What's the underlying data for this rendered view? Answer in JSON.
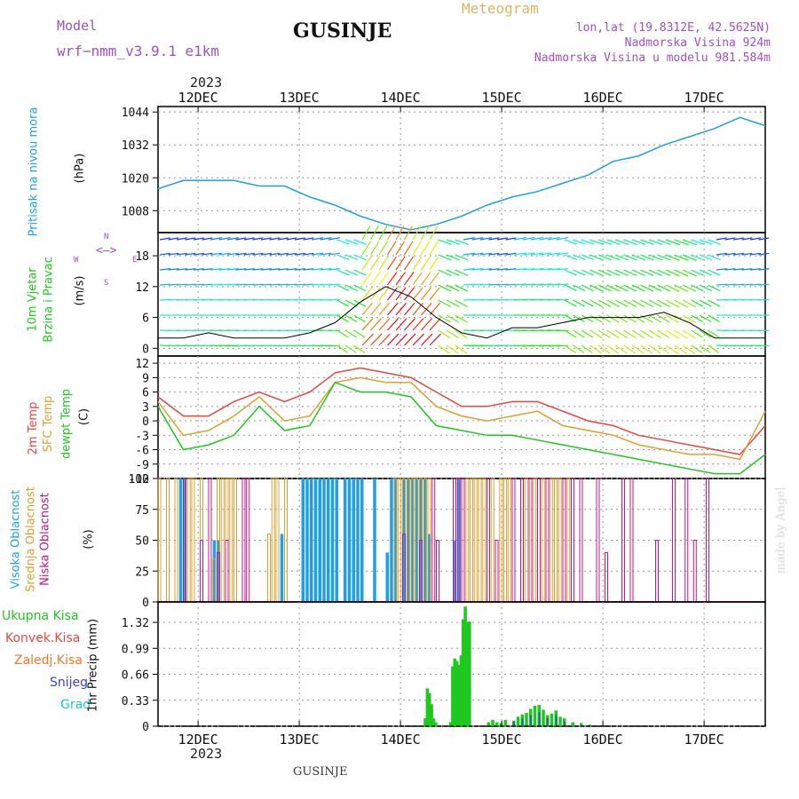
{
  "header": {
    "model_label": "Model",
    "model_name": "wrf−nmm_v3.9.1  e1km",
    "location": "GUSINJE",
    "product": "Meteogram",
    "lonlat": "lon,lat (19.8312E, 42.5625N)",
    "elevation": "Nadmorska Visina 924m",
    "model_elevation": "Nadmorska Visina u modelu 981.584m",
    "year_top": "2023",
    "year_bottom": "2023",
    "footer": "GUSINJE",
    "credit": "made by Angel"
  },
  "colors": {
    "pressure": "#1ea0e6",
    "temp2m": "#e8463c",
    "sfc": "#dca032",
    "dew": "#1ec81e",
    "high_cloud": "#1ea0e6",
    "mid_cloud": "#dca032",
    "low_cloud": "#c8148c",
    "precip": "#1ec81e",
    "snow": "#3c3cdc"
  },
  "chart_data": [
    {
      "type": "line",
      "panel": "pressure",
      "ylabel_main": "Pritisak na nivou mora",
      "ylabel_unit": "(hPa)",
      "x_ticks": [
        "12DEC",
        "13DEC",
        "14DEC",
        "15DEC",
        "16DEC",
        "17DEC"
      ],
      "y_ticks": [
        1008,
        1020,
        1032,
        1044
      ],
      "ylim": [
        1000,
        1046
      ],
      "x_hours": [
        0,
        6,
        12,
        18,
        24,
        30,
        36,
        42,
        48,
        54,
        60,
        66,
        72,
        78,
        84,
        90,
        96,
        102,
        108,
        114,
        120,
        126,
        132,
        138,
        144
      ],
      "series": [
        {
          "values": [
            1016,
            1019,
            1019,
            1019,
            1017,
            1017,
            1013,
            1010,
            1006,
            1003,
            1001,
            1003,
            1006,
            1010,
            1013,
            1015,
            1018,
            1021,
            1026,
            1028,
            1032,
            1035,
            1038,
            1042,
            1039
          ]
        }
      ]
    },
    {
      "type": "line",
      "panel": "wind",
      "ylabel_main": "10m Vjetar",
      "ylabel_sub": "Brzina i Pravac",
      "ylabel_unit": "(m/s)",
      "compass": [
        "N",
        "S",
        "W",
        "E"
      ],
      "y_ticks": [
        0,
        6,
        12,
        18
      ],
      "ylim": [
        -1.5,
        22.5
      ],
      "series": [
        {
          "values": [
            2,
            2,
            3,
            2,
            2,
            2,
            3,
            5,
            9,
            12,
            10,
            6,
            3,
            2,
            4,
            4,
            5,
            6,
            6,
            6,
            7,
            5,
            2,
            2,
            2
          ]
        }
      ]
    },
    {
      "type": "line",
      "panel": "temperature",
      "ylabel_main": "2m Temp",
      "ylabel_sfc": "SFC Temp",
      "ylabel_dew": "dewpt Temp",
      "ylabel_unit": "(C)",
      "y_ticks": [
        -12,
        -9,
        -6,
        -3,
        0,
        3,
        6,
        9,
        12
      ],
      "ylim": [
        -12,
        13.5
      ],
      "series": [
        {
          "values": [
            5,
            1,
            1,
            4,
            6,
            4,
            6,
            10,
            11,
            10,
            9,
            6,
            3,
            3,
            4,
            4,
            2,
            0,
            -1,
            -3,
            -4,
            -5,
            -6,
            -7,
            -1
          ]
        },
        {
          "values": [
            4,
            -3,
            -2,
            1,
            5,
            0,
            1,
            8,
            9,
            8,
            8,
            3,
            1,
            0,
            1,
            2,
            -1,
            -2,
            -3,
            -5,
            -6,
            -7,
            -7,
            -8,
            2
          ]
        },
        {
          "values": [
            3,
            -6,
            -5,
            -3,
            3,
            -2,
            -1,
            8,
            6,
            6,
            5,
            -1,
            -2,
            -3,
            -3,
            -4,
            -5,
            -6,
            -7,
            -8,
            -9,
            -10,
            -11,
            -11,
            -7
          ]
        }
      ]
    },
    {
      "type": "bar",
      "panel": "cloud",
      "ylabel_high": "Visoka Oblacnost",
      "ylabel_mid": "Srednja Oblacnost",
      "ylabel_low": "Niska Oblacnost",
      "ylabel_unit": "(%)",
      "y_ticks": [
        0,
        25,
        50,
        75,
        100
      ],
      "ylim": [
        0,
        100
      ],
      "series": [
        {
          "points": [
            [
              5,
              100
            ],
            [
              6,
              100
            ],
            [
              13,
              50
            ],
            [
              14,
              50
            ],
            [
              29,
              55
            ],
            [
              34,
              100
            ],
            [
              35,
              100
            ],
            [
              36,
              100
            ],
            [
              37,
              100
            ],
            [
              38,
              100
            ],
            [
              39,
              100
            ],
            [
              40,
              100
            ],
            [
              41,
              100
            ],
            [
              42,
              100
            ],
            [
              44,
              100
            ],
            [
              45,
              100
            ],
            [
              46,
              100
            ],
            [
              47,
              100
            ],
            [
              48,
              100
            ],
            [
              51,
              100
            ],
            [
              54,
              40
            ],
            [
              55,
              100
            ],
            [
              56,
              100
            ],
            [
              58,
              100
            ],
            [
              59,
              100
            ],
            [
              60,
              100
            ],
            [
              61,
              100
            ],
            [
              62,
              100
            ],
            [
              63,
              100
            ],
            [
              64,
              55
            ],
            [
              70,
              50
            ],
            [
              71,
              100
            ]
          ]
        },
        {
          "points": [
            [
              0,
              100
            ],
            [
              2,
              100
            ],
            [
              4,
              100
            ],
            [
              7,
              100
            ],
            [
              8,
              100
            ],
            [
              10,
              100
            ],
            [
              13,
              35
            ],
            [
              14,
              100
            ],
            [
              15,
              100
            ],
            [
              16,
              100
            ],
            [
              17,
              100
            ],
            [
              18,
              100
            ],
            [
              26,
              55
            ],
            [
              27,
              100
            ],
            [
              28,
              100
            ],
            [
              30,
              100
            ],
            [
              56,
              100
            ],
            [
              57,
              100
            ],
            [
              58,
              100
            ],
            [
              59,
              100
            ],
            [
              60,
              100
            ],
            [
              61,
              100
            ],
            [
              62,
              100
            ],
            [
              63,
              100
            ],
            [
              64,
              100
            ],
            [
              72,
              100
            ],
            [
              73,
              100
            ],
            [
              74,
              100
            ],
            [
              75,
              100
            ],
            [
              76,
              100
            ],
            [
              77,
              100
            ],
            [
              79,
              100
            ],
            [
              80,
              50
            ],
            [
              81,
              100
            ],
            [
              82,
              100
            ],
            [
              83,
              100
            ],
            [
              84,
              100
            ],
            [
              86,
              100
            ],
            [
              87,
              100
            ],
            [
              88,
              100
            ],
            [
              89,
              100
            ],
            [
              90,
              100
            ],
            [
              91,
              100
            ],
            [
              92,
              100
            ],
            [
              93,
              100
            ],
            [
              94,
              100
            ],
            [
              95,
              100
            ],
            [
              96,
              100
            ],
            [
              97,
              100
            ]
          ]
        },
        {
          "points": [
            [
              6,
              100
            ],
            [
              10,
              50
            ],
            [
              12,
              100
            ],
            [
              14,
              40
            ],
            [
              16,
              50
            ],
            [
              20,
              100
            ],
            [
              21,
              100
            ],
            [
              58,
              55
            ],
            [
              62,
              50
            ],
            [
              65,
              100
            ],
            [
              66,
              50
            ],
            [
              70,
              100
            ],
            [
              71,
              100
            ],
            [
              72,
              100
            ],
            [
              78,
              100
            ],
            [
              80,
              50
            ],
            [
              84,
              100
            ],
            [
              86,
              100
            ],
            [
              88,
              100
            ],
            [
              90,
              100
            ],
            [
              92,
              100
            ],
            [
              96,
              100
            ],
            [
              98,
              100
            ],
            [
              100,
              100
            ],
            [
              104,
              100
            ],
            [
              106,
              40
            ],
            [
              110,
              100
            ],
            [
              112,
              100
            ],
            [
              118,
              50
            ],
            [
              122,
              100
            ],
            [
              125,
              100
            ],
            [
              127,
              50
            ],
            [
              130,
              100
            ]
          ]
        }
      ]
    },
    {
      "type": "bar",
      "panel": "precipitation",
      "ylabel_main": "1hr Precip (mm)",
      "legend": [
        "Ukupna Kisa",
        "Konvek.Kisa",
        "Zaledj.Kisa",
        "Snijeg",
        "Grad"
      ],
      "y_ticks": [
        0,
        0.33,
        0.66,
        0.99,
        1.32
      ],
      "ylim": [
        0,
        1.58
      ],
      "bars": [
        [
          63,
          0.1
        ],
        [
          63.5,
          0.48
        ],
        [
          64,
          0.42
        ],
        [
          64.5,
          0.28
        ],
        [
          65,
          0.1
        ],
        [
          65.5,
          0.05
        ],
        [
          69,
          0.05
        ],
        [
          69.5,
          0.76
        ],
        [
          70,
          0.86
        ],
        [
          70.5,
          0.83
        ],
        [
          71,
          0.78
        ],
        [
          71.5,
          0.9
        ],
        [
          72,
          1.36
        ],
        [
          72.5,
          1.52
        ],
        [
          73,
          1.32
        ],
        [
          73.5,
          1.33
        ],
        [
          78,
          0.05
        ],
        [
          79,
          0.08
        ],
        [
          80,
          0.05
        ],
        [
          81,
          0.04
        ],
        [
          82,
          0.08
        ],
        [
          84,
          0.07
        ],
        [
          85,
          0.12
        ],
        [
          86,
          0.15
        ],
        [
          87,
          0.17
        ],
        [
          88,
          0.22
        ],
        [
          89,
          0.26
        ],
        [
          90,
          0.27
        ],
        [
          91,
          0.21
        ],
        [
          92,
          0.14
        ],
        [
          93,
          0.16
        ],
        [
          94,
          0.2
        ],
        [
          95,
          0.12
        ],
        [
          96,
          0.1
        ],
        [
          98,
          0.05
        ],
        [
          100,
          0.04
        ],
        [
          102,
          0.02
        ]
      ],
      "snow_bars": [
        [
          84,
          0.06
        ],
        [
          86,
          0.1
        ],
        [
          88,
          0.14
        ],
        [
          90,
          0.18
        ],
        [
          92,
          0.1
        ],
        [
          94,
          0.14
        ],
        [
          96,
          0.06
        ]
      ]
    }
  ]
}
